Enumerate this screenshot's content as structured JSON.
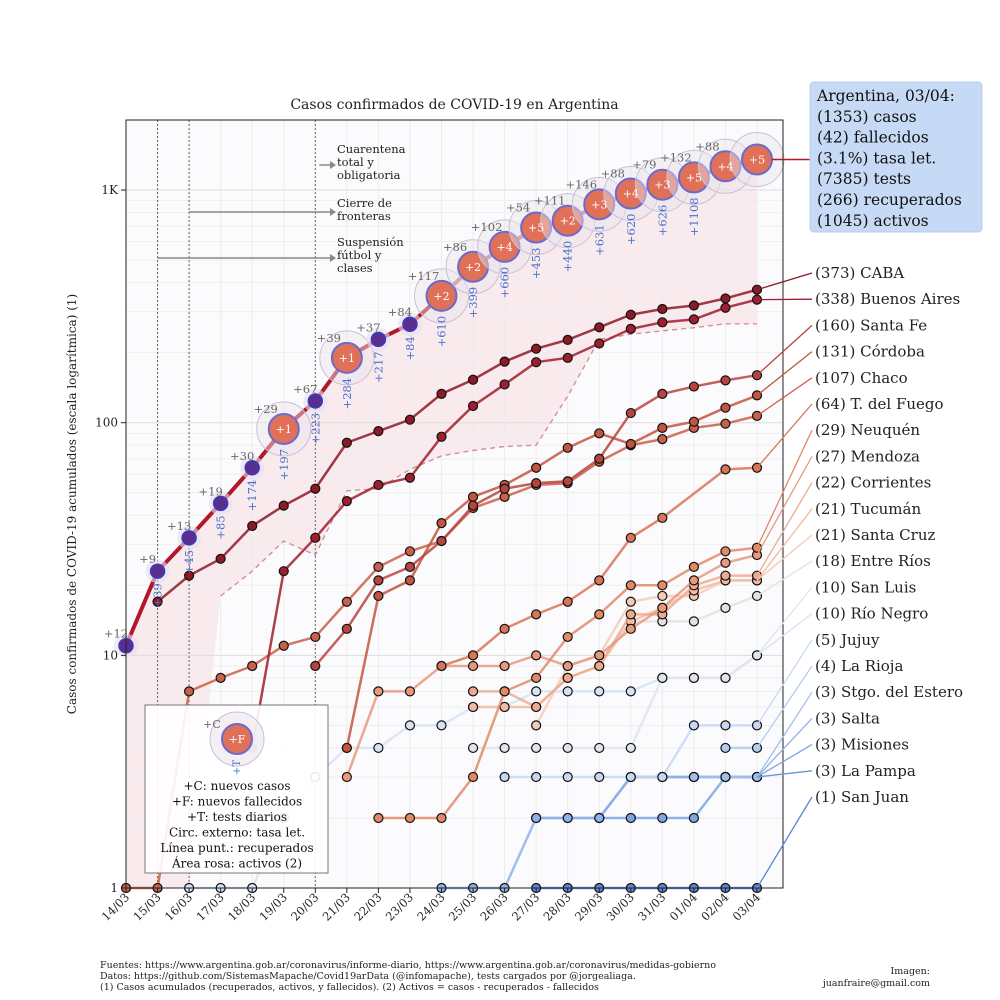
{
  "chart_data": {
    "type": "line",
    "title": "Casos confirmados de COVID-19 en Argentina",
    "xlabel": "",
    "ylabel": "Casos confirmados de COVID-19 acumulados (escala logarítmica) (1)",
    "yscale": "log",
    "ylim": [
      1,
      2000
    ],
    "yticks": [
      {
        "value": 1,
        "label": "1"
      },
      {
        "value": 10,
        "label": "10"
      },
      {
        "value": 100,
        "label": "100"
      },
      {
        "value": 1000,
        "label": "1K"
      }
    ],
    "grid": true,
    "x": [
      "14/03",
      "15/03",
      "16/03",
      "17/03",
      "18/03",
      "19/03",
      "20/03",
      "21/03",
      "22/03",
      "23/03",
      "24/03",
      "25/03",
      "26/03",
      "27/03",
      "28/03",
      "29/03",
      "30/03",
      "31/03",
      "01/04",
      "02/04",
      "03/04"
    ],
    "total": {
      "name": "Argentina",
      "values": [
        11,
        23,
        32,
        45,
        64,
        94,
        124,
        190,
        228,
        265,
        351,
        468,
        570,
        690,
        738,
        868,
        966,
        1054,
        1133,
        1265,
        1353
      ],
      "new_cases": [
        12,
        9,
        13,
        19,
        30,
        29,
        67,
        39,
        37,
        84,
        117,
        86,
        102,
        54,
        111,
        146,
        88,
        79,
        132,
        88,
        null
      ],
      "new_deaths": [
        null,
        null,
        null,
        null,
        null,
        1,
        null,
        1,
        null,
        null,
        2,
        2,
        4,
        5,
        2,
        3,
        4,
        3,
        5,
        4,
        5
      ],
      "daily_tests": [
        null,
        39,
        45,
        85,
        174,
        197,
        223,
        284,
        217,
        84,
        610,
        399,
        660,
        453,
        440,
        631,
        620,
        626,
        1108,
        null,
        null
      ],
      "recovered": [
        null,
        null,
        null,
        18,
        23,
        31,
        27,
        51,
        52,
        63,
        72,
        76,
        79,
        80,
        130,
        228,
        240,
        248,
        256,
        266,
        266
      ],
      "color": "#b2182b",
      "marker_color": "#e07058"
    },
    "events": [
      {
        "label": "Suspensión fútbol y clases",
        "date": "15/03"
      },
      {
        "label": "Cierre de fronteras",
        "date": "16/03"
      },
      {
        "label": "Cuarentena total y obligatoria",
        "date": "20/03"
      }
    ],
    "summary_box": {
      "lines": [
        "Argentina, 03/04:",
        "(1353) casos",
        "(42) fallecidos",
        "(3.1%) tasa let.",
        "(7385) tests",
        "(266) recuperados",
        "(1045) activos"
      ],
      "color": "#c6d9f5"
    },
    "legend_box": {
      "sample_new_cases": "+C",
      "sample_death_label": "+F",
      "sample_tests": "+T",
      "lines": [
        "+C: nuevos casos",
        "+F: nuevos fallecidos",
        "+T: tests diarios",
        "Circ. externo: tasa let.",
        "Línea punt.: recuperados",
        "Área rosa: activos (2)"
      ]
    },
    "series": [
      {
        "name": "CABA",
        "label": "(373) CABA",
        "color": "#8c1a26",
        "values": [
          null,
          17,
          22,
          26,
          36,
          44,
          52,
          82,
          92,
          103,
          133,
          153,
          183,
          208,
          227,
          257,
          291,
          308,
          319,
          342,
          373
        ]
      },
      {
        "name": "Buenos Aires",
        "label": "(338) Buenos Aires",
        "color": "#a01f2e",
        "values": [
          null,
          null,
          null,
          null,
          4,
          23,
          32,
          46,
          54,
          58,
          87,
          118,
          146,
          182,
          190,
          219,
          253,
          270,
          278,
          312,
          338
        ]
      },
      {
        "name": "Santa Fe",
        "label": "(160) Santa Fe",
        "color": "#b8443f",
        "values": [
          null,
          null,
          null,
          null,
          null,
          null,
          9,
          13,
          21,
          24,
          31,
          44,
          52,
          55,
          56,
          70,
          110,
          133,
          143,
          152,
          160
        ]
      },
      {
        "name": "Córdoba",
        "label": "(131) Córdoba",
        "color": "#c2553f",
        "values": [
          null,
          null,
          null,
          null,
          null,
          null,
          null,
          4,
          18,
          21,
          37,
          48,
          54,
          64,
          78,
          90,
          81,
          95,
          101,
          116,
          131
        ]
      },
      {
        "name": "Chaco",
        "label": "(107) Chaco",
        "color": "#c9604a",
        "values": [
          1,
          1,
          7,
          8,
          9,
          11,
          12,
          17,
          24,
          28,
          31,
          43,
          48,
          54,
          55,
          68,
          80,
          85,
          95,
          99,
          107
        ]
      },
      {
        "name": "T. del Fuego",
        "label": "(64) T. del Fuego",
        "color": "#d87457",
        "values": [
          null,
          null,
          null,
          null,
          null,
          null,
          null,
          null,
          null,
          null,
          9,
          10,
          13,
          15,
          17,
          21,
          32,
          39,
          null,
          63,
          64
        ]
      },
      {
        "name": "Neuquén",
        "label": "(29) Neuquén",
        "color": "#e08a68",
        "values": [
          null,
          null,
          null,
          null,
          null,
          null,
          null,
          null,
          2,
          2,
          2,
          3,
          7,
          8,
          12,
          15,
          20,
          20,
          24,
          28,
          29
        ]
      },
      {
        "name": "Mendoza",
        "label": "(27) Mendoza",
        "color": "#e8997c",
        "values": [
          null,
          null,
          null,
          null,
          null,
          null,
          null,
          3,
          7,
          7,
          9,
          9,
          9,
          10,
          9,
          10,
          13,
          16,
          21,
          25,
          27
        ]
      },
      {
        "name": "Corrientes",
        "label": "(22) Corrientes",
        "color": "#eeaa8e",
        "values": [
          null,
          null,
          null,
          null,
          null,
          null,
          null,
          null,
          null,
          null,
          null,
          7,
          7,
          6,
          8,
          9,
          15,
          15,
          20,
          22,
          22
        ]
      },
      {
        "name": "Tucumán",
        "label": "(21) Tucumán",
        "color": "#f2bca4",
        "values": [
          null,
          null,
          null,
          null,
          null,
          null,
          null,
          null,
          null,
          null,
          null,
          6,
          6,
          6,
          8,
          9,
          14,
          16,
          19,
          21,
          21
        ]
      },
      {
        "name": "Santa Cruz",
        "label": "(21) Santa Cruz",
        "color": "#f4cbb8",
        "values": [
          null,
          null,
          null,
          null,
          null,
          null,
          null,
          null,
          null,
          null,
          null,
          null,
          null,
          5,
          9,
          10,
          17,
          18,
          18,
          21,
          21
        ]
      },
      {
        "name": "Entre Ríos",
        "label": "(18) Entre Ríos",
        "color": "#e6e0de",
        "values": [
          null,
          null,
          null,
          null,
          null,
          null,
          null,
          null,
          null,
          null,
          null,
          null,
          null,
          null,
          null,
          null,
          14,
          14,
          14,
          16,
          18
        ]
      },
      {
        "name": "San Luis",
        "label": "(10) San Luis",
        "color": "#dfe5ee",
        "values": [
          null,
          null,
          null,
          null,
          null,
          null,
          null,
          null,
          null,
          null,
          null,
          4,
          4,
          4,
          4,
          4,
          4,
          8,
          8,
          8,
          10
        ]
      },
      {
        "name": "Río Negro",
        "label": "(10) Río Negro",
        "color": "#d6e3f5",
        "values": [
          null,
          null,
          1,
          1,
          1,
          2,
          3,
          4,
          4,
          5,
          5,
          6,
          6,
          7,
          7,
          7,
          7,
          8,
          8,
          8,
          10
        ]
      },
      {
        "name": "Jujuy",
        "label": "(5) Jujuy",
        "color": "#c6d8f3",
        "values": [
          null,
          null,
          null,
          null,
          null,
          null,
          null,
          null,
          null,
          null,
          null,
          null,
          3,
          3,
          3,
          3,
          3,
          3,
          5,
          5,
          5
        ]
      },
      {
        "name": "La Rioja",
        "label": "(4) La Rioja",
        "color": "#b4ccf0",
        "values": [
          null,
          null,
          null,
          null,
          null,
          null,
          null,
          null,
          null,
          null,
          null,
          null,
          null,
          null,
          null,
          null,
          null,
          null,
          null,
          4,
          4
        ]
      },
      {
        "name": "Stgo. del Estero",
        "label": "(3) Stgo. del Estero",
        "color": "#a2bfec",
        "values": [
          null,
          null,
          null,
          null,
          null,
          null,
          null,
          null,
          null,
          null,
          null,
          null,
          null,
          null,
          null,
          null,
          null,
          null,
          3,
          3,
          3
        ]
      },
      {
        "name": "Salta",
        "label": "(3) Salta",
        "color": "#90b2e8",
        "values": [
          null,
          null,
          null,
          null,
          null,
          null,
          null,
          null,
          null,
          null,
          1,
          1,
          1,
          2,
          2,
          2,
          3,
          3,
          3,
          3,
          3
        ]
      },
      {
        "name": "Misiones",
        "label": "(3) Misiones",
        "color": "#7ea4e3",
        "values": [
          null,
          null,
          null,
          null,
          null,
          null,
          null,
          null,
          null,
          null,
          null,
          null,
          null,
          2,
          2,
          2,
          2,
          2,
          2,
          3,
          3
        ]
      },
      {
        "name": "La Pampa",
        "label": "(3) La Pampa",
        "color": "#6b95dc",
        "values": [
          null,
          null,
          null,
          null,
          null,
          null,
          null,
          null,
          null,
          null,
          null,
          null,
          null,
          null,
          null,
          2,
          3,
          3,
          3,
          3,
          3
        ]
      },
      {
        "name": "San Juan",
        "label": "(1) San Juan",
        "color": "#5a86d6",
        "values": [
          null,
          null,
          null,
          null,
          null,
          null,
          null,
          null,
          null,
          null,
          null,
          null,
          null,
          1,
          1,
          1,
          1,
          1,
          1,
          1,
          1
        ]
      }
    ]
  },
  "footer": {
    "lines": [
      "Fuentes: https://www.argentina.gob.ar/coronavirus/informe-diario, https://www.argentina.gob.ar/coronavirus/medidas-gobierno",
      "Datos: https://github.com/SistemasMapache/Covid19arData (@infomapache), tests cargados por @jorgealiaga.",
      "(1) Casos acumulados (recuperados, activos, y fallecidos). (2) Activos = casos - recuperados - fallecidos"
    ],
    "credit_label": "Imagen:",
    "credit_email": "juanfraire@gmail.com"
  }
}
